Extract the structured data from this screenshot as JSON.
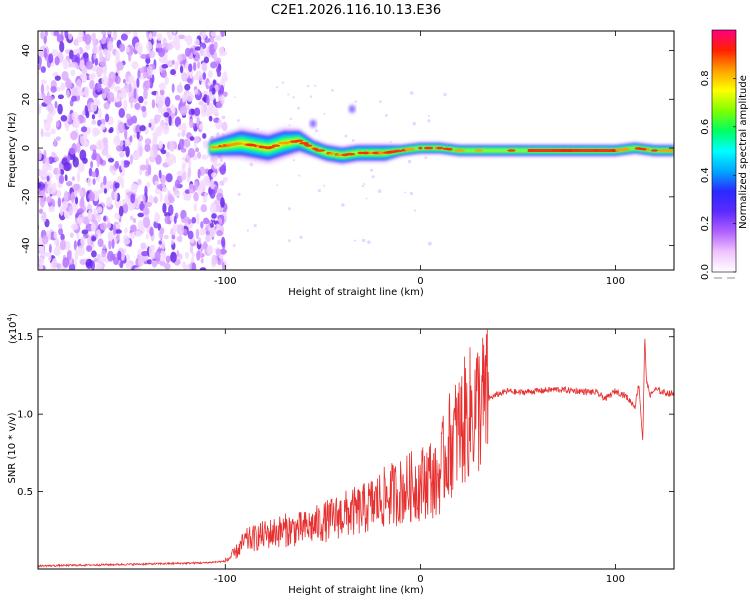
{
  "chart_data": [
    {
      "type": "heatmap",
      "title": "C2E1.2026.116.10.13.E36",
      "xlabel": "Height of straight line (km)",
      "ylabel": "Frequency (Hz)",
      "xlim": [
        -196,
        130
      ],
      "ylim": [
        -50,
        48
      ],
      "xticks": [
        -100,
        0,
        100
      ],
      "xtick_labels": [
        "-100",
        "0",
        "100"
      ],
      "yticks": [
        -40,
        -20,
        0,
        20,
        40
      ],
      "ytick_labels": [
        "-40",
        "-20",
        "0",
        "20",
        "40"
      ],
      "noise_region_km": [
        -196,
        -104
      ],
      "ridge": {
        "x": [
          -108,
          -100,
          -92,
          -85,
          -78,
          -70,
          -62,
          -55,
          -48,
          -40,
          -32,
          -25,
          -18,
          -10,
          0,
          10,
          20,
          40,
          60,
          80,
          100,
          110,
          120,
          130
        ],
        "freq": [
          0,
          1,
          2,
          1,
          0,
          2,
          3,
          0,
          -2,
          -3,
          -2,
          -2,
          -2,
          -1,
          0,
          0,
          -1,
          -1,
          -1,
          -1,
          -1,
          0,
          -1,
          -1
        ],
        "half_width_hz": [
          3,
          4,
          5,
          5,
          5,
          5,
          4,
          3,
          3,
          3,
          3,
          3,
          3,
          2,
          2,
          2,
          2,
          2,
          2,
          2,
          2,
          2,
          2,
          2
        ]
      },
      "colorbar": {
        "label": "Normalized spectral amplitude",
        "ticks": [
          0.0,
          0.2,
          0.4,
          0.6,
          0.8
        ],
        "tick_labels": [
          "0.0",
          "0.2",
          "0.4",
          "0.6",
          "0.8"
        ],
        "range": [
          0,
          1
        ],
        "colors": [
          "#ffffff",
          "#f1c3ff",
          "#b060ff",
          "#5b2bff",
          "#2a2aff",
          "#00a8ff",
          "#00ffff",
          "#00ff60",
          "#7fff00",
          "#ffff00",
          "#ffa000",
          "#ff2000",
          "#ff0080"
        ]
      }
    },
    {
      "type": "line",
      "xlabel": "Height of straight line (km)",
      "ylabel": "SNR (10 * v/v)",
      "xlim": [
        -196,
        130
      ],
      "ylim": [
        0,
        1.55
      ],
      "exponent_label": "(x10",
      "exponent_power": "4",
      "exponent_close": ")",
      "xticks": [
        -100,
        0,
        100
      ],
      "xtick_labels": [
        "-100",
        "0",
        "100"
      ],
      "yticks": [
        0.5,
        1.0,
        1.5
      ],
      "ytick_labels": [
        "0.5",
        "1.0",
        "1.5"
      ],
      "series": [
        {
          "name": "SNR",
          "color": "#e83030",
          "x": [
            -196,
            -150,
            -110,
            -100,
            -95,
            -90,
            -85,
            -80,
            -70,
            -60,
            -50,
            -40,
            -30,
            -20,
            -15,
            -10,
            -5,
            0,
            5,
            8,
            10,
            12,
            15,
            20,
            25,
            30,
            35,
            40,
            45,
            50,
            60,
            70,
            80,
            90,
            95,
            100,
            105,
            110,
            112,
            114,
            115,
            116,
            118,
            120,
            125,
            130
          ],
          "y": [
            0.02,
            0.03,
            0.04,
            0.05,
            0.1,
            0.18,
            0.2,
            0.22,
            0.25,
            0.26,
            0.3,
            0.35,
            0.38,
            0.45,
            0.48,
            0.5,
            0.53,
            0.55,
            0.6,
            0.55,
            0.62,
            0.7,
            0.8,
            0.9,
            1.0,
            1.06,
            1.1,
            1.13,
            1.15,
            1.14,
            1.15,
            1.16,
            1.15,
            1.14,
            1.1,
            1.15,
            1.12,
            1.05,
            1.2,
            0.82,
            1.5,
            1.2,
            1.12,
            1.16,
            1.14,
            1.13
          ]
        }
      ]
    }
  ]
}
